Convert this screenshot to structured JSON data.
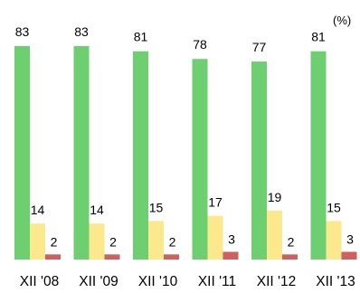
{
  "chart_data": {
    "type": "bar",
    "unit": "(%)",
    "categories": [
      "XII '08",
      "XII '09",
      "XII '10",
      "XII '11",
      "XII '12",
      "XII '13"
    ],
    "series": [
      {
        "values": [
          83,
          83,
          81,
          78,
          77,
          81
        ],
        "color": "#6dcf6f"
      },
      {
        "values": [
          14,
          14,
          15,
          17,
          19,
          15
        ],
        "color": "#fde98d"
      },
      {
        "values": [
          2,
          2,
          2,
          3,
          2,
          3
        ],
        "color": "#d06060"
      }
    ],
    "ylim": [
      0,
      90
    ],
    "grid": false,
    "data_labels": true
  }
}
